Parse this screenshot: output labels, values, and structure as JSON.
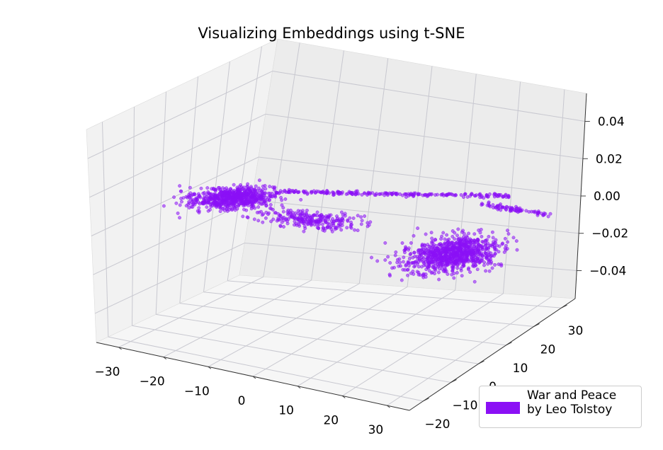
{
  "chart_data": {
    "type": "scatter",
    "projection": "3d",
    "title": "Visualizing Embeddings using t-SNE",
    "xlabel": "",
    "ylabel": "",
    "zlabel": "",
    "x_ticks": [
      -30,
      -20,
      -10,
      0,
      10,
      20,
      30
    ],
    "y_ticks": [
      -20,
      -10,
      0,
      10,
      20,
      30
    ],
    "z_ticks": [
      -0.04,
      -0.02,
      0.0,
      0.02,
      0.04
    ],
    "x_tick_labels": [
      "−30",
      "−20",
      "−10",
      "0",
      "10",
      "20",
      "30"
    ],
    "y_tick_labels": [
      "−20",
      "−10",
      "0",
      "10",
      "20",
      "30"
    ],
    "z_tick_labels": [
      "−0.04",
      "−0.02",
      "0.00",
      "0.02",
      "0.04"
    ],
    "xlim": [
      -35,
      35
    ],
    "ylim": [
      -25,
      35
    ],
    "zlim": [
      -0.055,
      0.055
    ],
    "grid": true,
    "legend_position": "lower-right",
    "color": "#8b10f5",
    "series": [
      {
        "name": "War and Peace\nby Leo Tolstoy",
        "clusters": [
          {
            "x_center": -28,
            "y_center": 18,
            "x_spread": 7,
            "y_spread": 8,
            "count": 700
          },
          {
            "x_center": -8,
            "y_center": 10,
            "x_spread": 9,
            "y_spread": 5,
            "count": 250
          },
          {
            "x_center": 26,
            "y_center": 2,
            "x_spread": 7,
            "y_spread": 9,
            "count": 900
          }
        ],
        "arm": {
          "from": [
            -22,
            26
          ],
          "to": [
            20,
            34
          ],
          "count": 220
        },
        "tail": {
          "from": [
            18,
            28
          ],
          "to": [
            32,
            26
          ],
          "count": 80
        },
        "z": 0.0
      }
    ]
  }
}
